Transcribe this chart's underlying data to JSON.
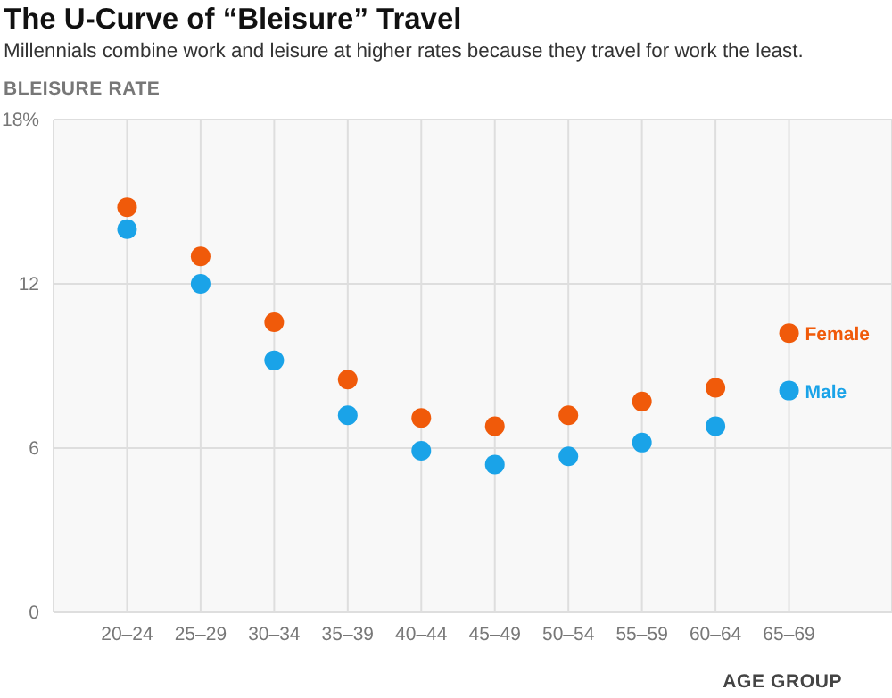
{
  "chart_data": {
    "type": "scatter",
    "title": "The U-Curve of “Bleisure” Travel",
    "subtitle": "Millennials combine work and leisure at higher rates because they travel for work the least.",
    "ylabel": "BLEISURE RATE",
    "xlabel": "AGE GROUP",
    "categories": [
      "20–24",
      "25–29",
      "30–34",
      "35–39",
      "40–44",
      "45–49",
      "50–54",
      "55–59",
      "60–64",
      "65–69"
    ],
    "series": [
      {
        "name": "Female",
        "color": "#f05a0a",
        "values": [
          14.8,
          13.0,
          10.6,
          8.5,
          7.1,
          6.8,
          7.2,
          7.7,
          8.2,
          10.2
        ]
      },
      {
        "name": "Male",
        "color": "#1aa3e8",
        "values": [
          14.0,
          12.0,
          9.2,
          7.2,
          5.9,
          5.4,
          5.7,
          6.2,
          6.8,
          8.1
        ]
      }
    ],
    "ylim": [
      0,
      18
    ],
    "yticks": [
      0,
      6,
      12,
      {
        "value": 18,
        "label": "18%"
      }
    ],
    "grid": true,
    "legend": false,
    "marker": "circle"
  }
}
